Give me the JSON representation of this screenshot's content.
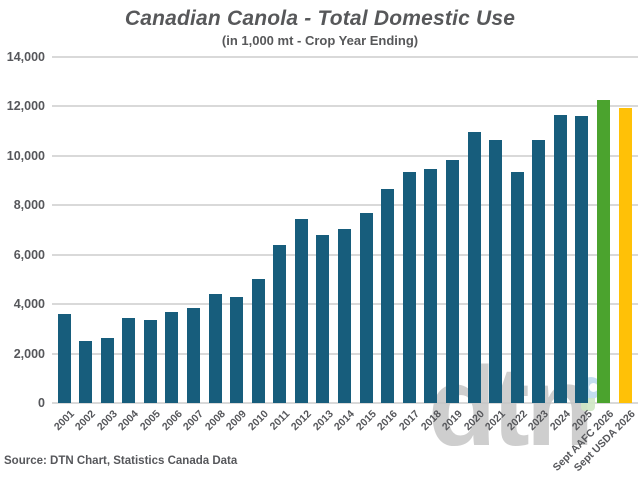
{
  "page": {
    "title": "Canadian Canola - Total Domestic Use",
    "subtitle": "(in 1,000 mt - Crop Year Ending)",
    "source_note": "Source: DTN Chart, Statistics Canada Data",
    "watermark_text": "dtn"
  },
  "colors": {
    "bar_teal": "#175d7c",
    "bar_green": "#4ba32e",
    "bar_yellow": "#ffc107",
    "gridline": "#d9d9d9",
    "text_gray": "#57585a"
  },
  "chart_data": {
    "type": "bar",
    "title": "Canadian Canola - Total Domestic Use",
    "subtitle": "(in 1,000 mt - Crop Year Ending)",
    "xlabel": "",
    "ylabel": "",
    "ylim": [
      0,
      14000
    ],
    "ytick_step": 2000,
    "ytick_labels": [
      "0",
      "2,000",
      "4,000",
      "6,000",
      "8,000",
      "10,000",
      "12,000",
      "14,000"
    ],
    "grid": "horizontal",
    "legend": "none",
    "source": "Source: DTN Chart, Statistics Canada Data",
    "categories": [
      "2001",
      "2002",
      "2003",
      "2004",
      "2005",
      "2006",
      "2007",
      "2008",
      "2009",
      "2010",
      "2011",
      "2012",
      "2013",
      "2014",
      "2015",
      "2016",
      "2017",
      "2018",
      "2019",
      "2020",
      "2021",
      "2022",
      "2023",
      "2024",
      "2025",
      "Sept AAFC 2026",
      "Sept USDA 2026"
    ],
    "values": [
      3600,
      2500,
      2650,
      3450,
      3350,
      3700,
      3850,
      4400,
      4300,
      5000,
      6400,
      7450,
      6800,
      7050,
      7700,
      8650,
      9350,
      9450,
      9850,
      10950,
      10650,
      9350,
      10650,
      11650,
      11600,
      12250,
      11950
    ],
    "bar_colors": [
      "#175d7c",
      "#175d7c",
      "#175d7c",
      "#175d7c",
      "#175d7c",
      "#175d7c",
      "#175d7c",
      "#175d7c",
      "#175d7c",
      "#175d7c",
      "#175d7c",
      "#175d7c",
      "#175d7c",
      "#175d7c",
      "#175d7c",
      "#175d7c",
      "#175d7c",
      "#175d7c",
      "#175d7c",
      "#175d7c",
      "#175d7c",
      "#175d7c",
      "#175d7c",
      "#175d7c",
      "#175d7c",
      "#4ba32e",
      "#ffc107"
    ]
  }
}
